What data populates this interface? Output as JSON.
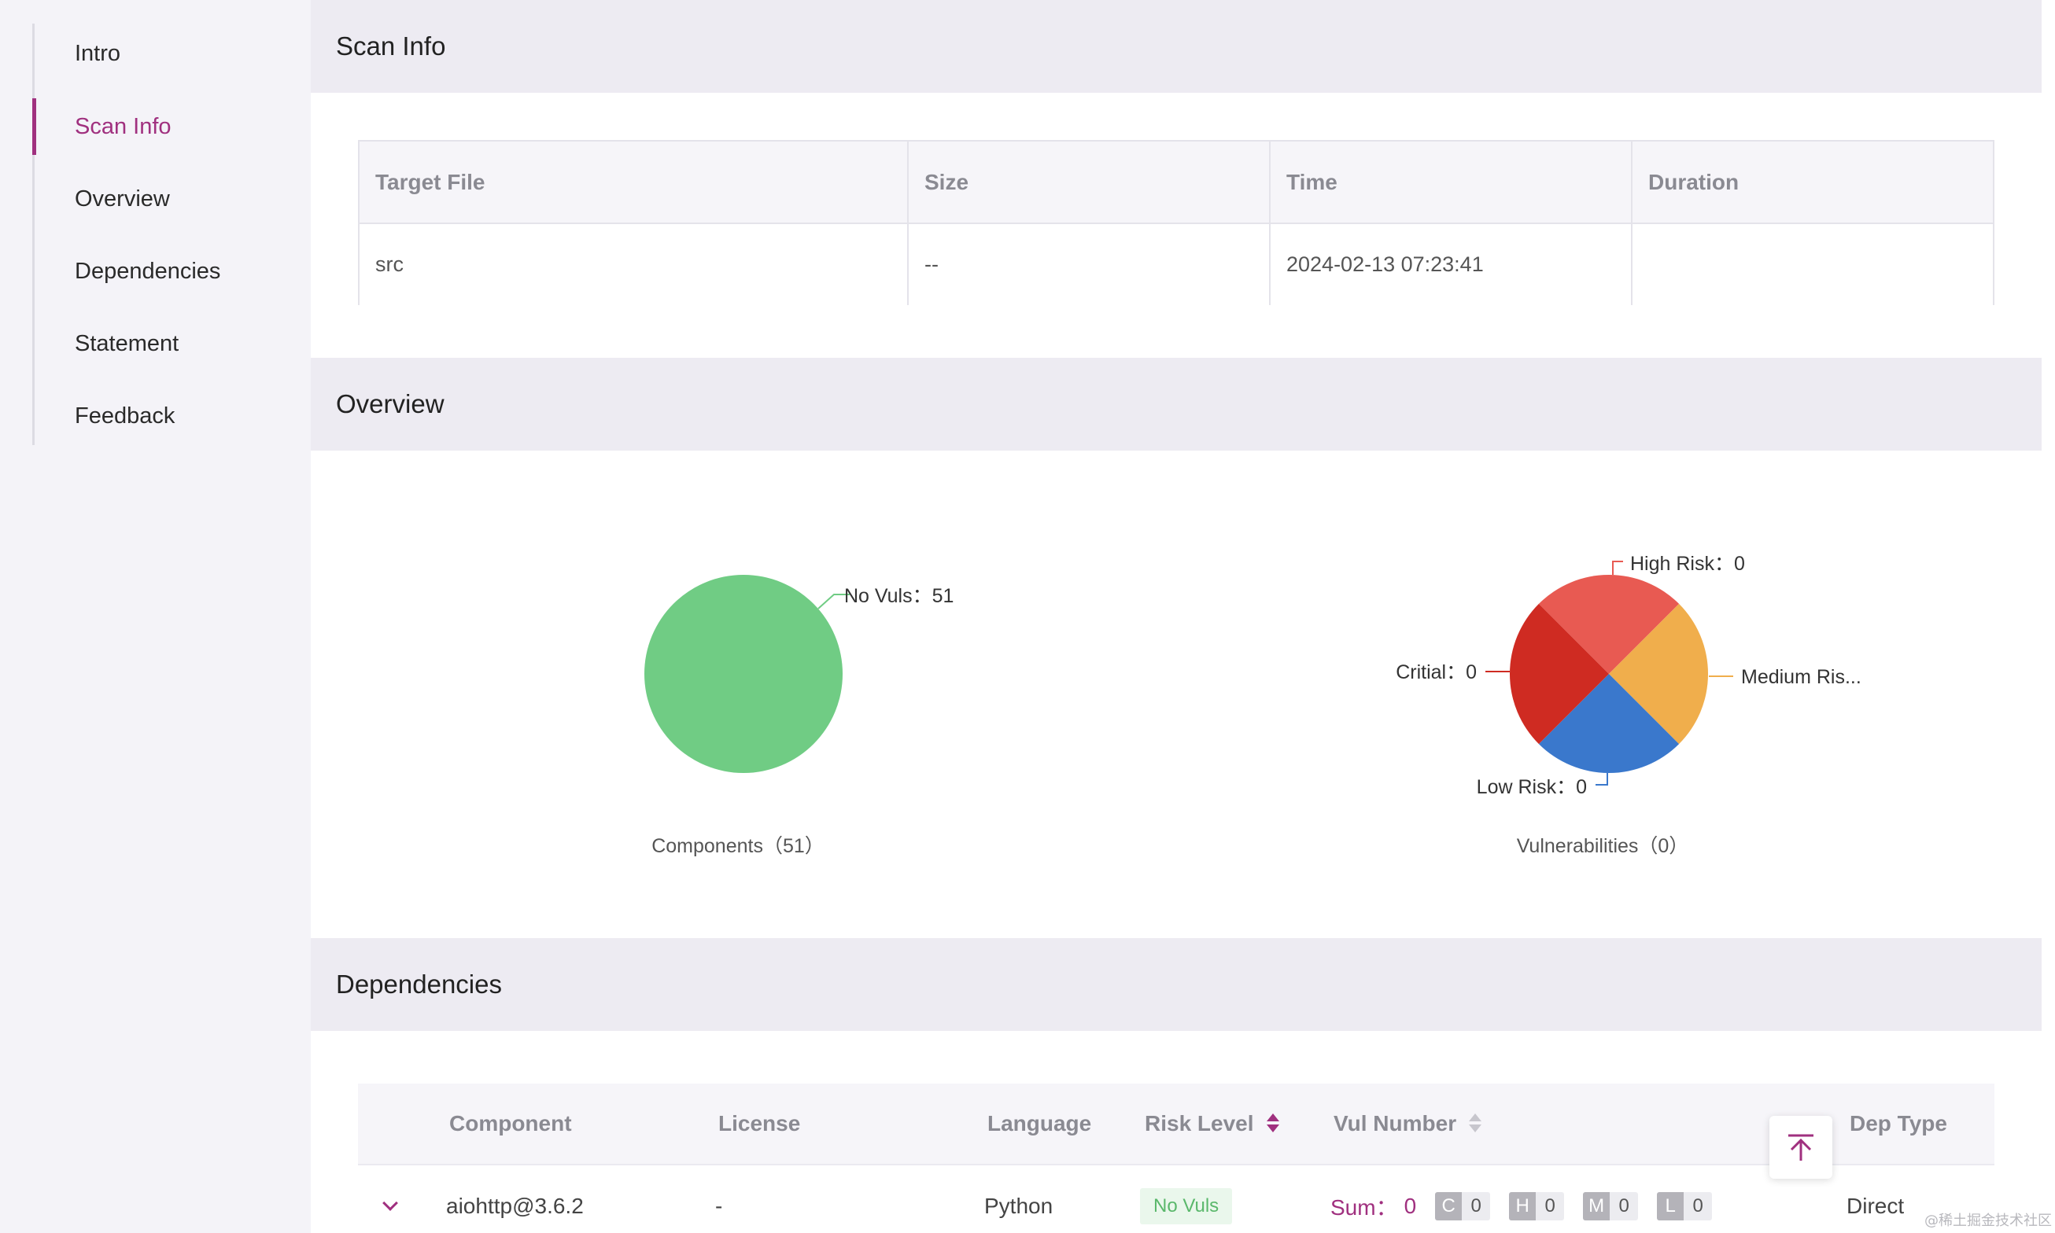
{
  "sidebar": {
    "items": [
      {
        "label": "Intro",
        "active": false
      },
      {
        "label": "Scan Info",
        "active": true
      },
      {
        "label": "Overview",
        "active": false
      },
      {
        "label": "Dependencies",
        "active": false
      },
      {
        "label": "Statement",
        "active": false
      },
      {
        "label": "Feedback",
        "active": false
      }
    ]
  },
  "sections": {
    "scan_info": "Scan Info",
    "overview": "Overview",
    "dependencies": "Dependencies"
  },
  "scan_table": {
    "headers": [
      "Target File",
      "Size",
      "Time",
      "Duration"
    ],
    "row": [
      "src",
      "--",
      "2024-02-13 07:23:41",
      ""
    ]
  },
  "chart_data": [
    {
      "type": "pie",
      "title": "",
      "caption": "Components（51）",
      "slices": [
        {
          "label": "No Vuls：51",
          "name": "No Vuls",
          "value": 51,
          "color": "#70cc84"
        }
      ]
    },
    {
      "type": "pie",
      "title": "",
      "caption": "Vulnerabilities（0）",
      "slices": [
        {
          "label": "High Risk：0",
          "name": "High Risk",
          "value": 0,
          "color": "#e85a52"
        },
        {
          "label": "Medium Ris...",
          "name": "Medium Risk",
          "value": 0,
          "color": "#f0ae4c"
        },
        {
          "label": "Low Risk：0",
          "name": "Low Risk",
          "value": 0,
          "color": "#3a78cc"
        },
        {
          "label": "Critial：0",
          "name": "Critial",
          "value": 0,
          "color": "#cf2b22"
        }
      ]
    }
  ],
  "dependencies_table": {
    "headers": {
      "component": "Component",
      "license": "License",
      "language": "Language",
      "risk_level": "Risk Level",
      "vul_number": "Vul Number",
      "dep_type": "Dep Type"
    },
    "rows": [
      {
        "component": "aiohttp@3.6.2",
        "license": "-",
        "language": "Python",
        "risk_level": "No Vuls",
        "sum_label": "Sum：",
        "sum_value": "0",
        "severity": [
          {
            "letter": "C",
            "count": "0"
          },
          {
            "letter": "H",
            "count": "0"
          },
          {
            "letter": "M",
            "count": "0"
          },
          {
            "letter": "L",
            "count": "0"
          }
        ],
        "dep_type": "Direct"
      }
    ]
  },
  "icons": {
    "back_to_top": "arrow-up-to-line-icon",
    "expand_row": "chevron-down-icon",
    "sort": "sort-caret-icon"
  },
  "colors": {
    "accent": "#a0307f",
    "section_bg": "#edebf2",
    "sidebar_bg": "#f4f3f8"
  },
  "watermark": "@稀土掘金技术社区"
}
